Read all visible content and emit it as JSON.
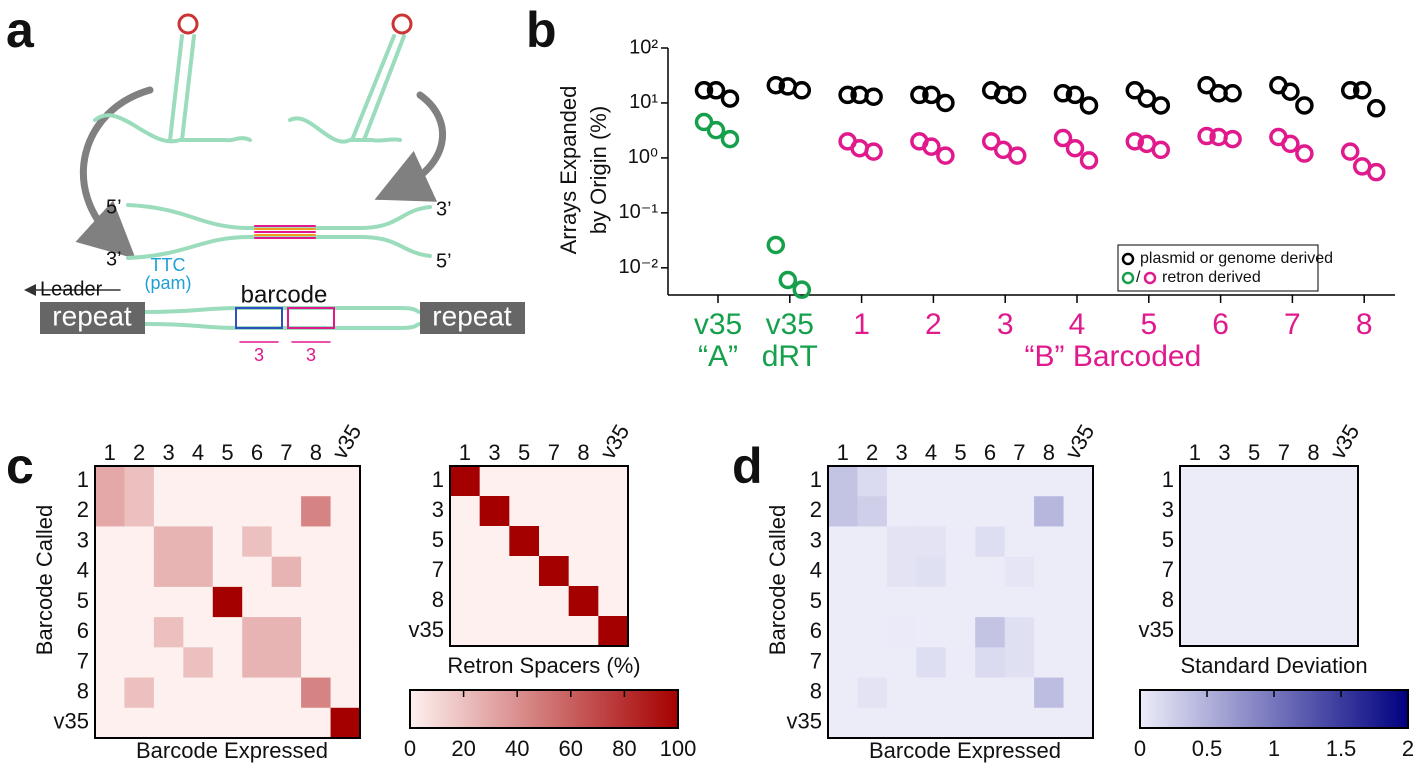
{
  "panel_labels": [
    "a",
    "b",
    "c",
    "d"
  ],
  "diagram": {
    "strand_ends": [
      "5’",
      "3’",
      "3’",
      "5’"
    ],
    "pam": [
      "TTC",
      "(pam)"
    ],
    "leader": "Leader",
    "repeats": [
      "repeat",
      "repeat"
    ],
    "barcode": "barcode",
    "segment_lengths": [
      3,
      3
    ]
  },
  "chart_data": [
    {
      "type": "scatter",
      "log_y": true,
      "ylabel": [
        "Arrays Expanded",
        "by Origin (%)"
      ],
      "categories": [
        "v35",
        "v35",
        "1",
        "2",
        "3",
        "4",
        "5",
        "6",
        "7",
        "8"
      ],
      "category_sublabels": [
        "“A”",
        "dRT",
        null,
        null,
        null,
        null,
        null,
        null,
        null,
        null
      ],
      "group_label": "“B” Barcoded",
      "ylim": [
        0.0032,
        100
      ],
      "yticks": [
        {
          "value": 100,
          "label": "10²"
        },
        {
          "value": 10,
          "label": "10¹"
        },
        {
          "value": 1,
          "label": "10⁰"
        },
        {
          "value": 0.1,
          "label": "10⁻¹"
        },
        {
          "value": 0.01,
          "label": "10⁻²"
        }
      ],
      "legend": "lower right",
      "legend_separator": "/",
      "series": [
        {
          "name": "plasmid or genome derived",
          "color": "#000000",
          "values": [
            [
              17,
              17,
              12
            ],
            [
              21,
              20,
              17
            ],
            [
              14,
              14,
              13
            ],
            [
              14,
              14,
              10
            ],
            [
              17,
              14,
              14
            ],
            [
              15,
              14,
              9
            ],
            [
              17,
              12,
              9
            ],
            [
              21,
              15,
              15
            ],
            [
              21,
              16,
              9
            ],
            [
              17,
              17,
              8
            ]
          ]
        },
        {
          "name": "retron derived",
          "colors": [
            "#16a04c",
            "#16a04c",
            "#e0198c",
            "#e0198c",
            "#e0198c",
            "#e0198c",
            "#e0198c",
            "#e0198c",
            "#e0198c",
            "#e0198c"
          ],
          "values": [
            [
              4.5,
              3.2,
              2.2
            ],
            [
              0.026,
              0.006,
              0.004
            ],
            [
              2.0,
              1.5,
              1.3
            ],
            [
              2.0,
              1.6,
              1.1
            ],
            [
              2.0,
              1.4,
              1.1
            ],
            [
              2.3,
              1.5,
              0.9
            ],
            [
              2.0,
              1.8,
              1.4
            ],
            [
              2.5,
              2.4,
              2.2
            ],
            [
              2.4,
              1.8,
              1.2
            ],
            [
              1.3,
              0.7,
              0.55
            ]
          ]
        }
      ]
    },
    {
      "type": "heatmap",
      "ylabel": "Barcode Called",
      "xlabel": "Barcode Expressed",
      "colorbar_title": "Retron Spacers (%)",
      "clim": [
        0,
        100
      ],
      "cticks": [
        0,
        20,
        40,
        60,
        80,
        100
      ],
      "colors": [
        "#fdf0ef",
        "#a50000"
      ],
      "matrices": [
        {
          "rows": [
            "1",
            "2",
            "3",
            "4",
            "5",
            "6",
            "7",
            "8",
            "v35"
          ],
          "columns": [
            "1",
            "2",
            "3",
            "4",
            "5",
            "6",
            "7",
            "8",
            "v35"
          ],
          "values": [
            [
              30,
              20,
              0,
              0,
              0,
              0,
              0,
              0,
              0
            ],
            [
              30,
              20,
              0,
              0,
              0,
              0,
              0,
              45,
              0
            ],
            [
              0,
              0,
              25,
              25,
              0,
              20,
              0,
              0,
              0
            ],
            [
              0,
              0,
              25,
              25,
              0,
              0,
              25,
              0,
              0
            ],
            [
              0,
              0,
              0,
              0,
              100,
              0,
              0,
              0,
              0
            ],
            [
              0,
              0,
              20,
              0,
              0,
              25,
              25,
              0,
              0
            ],
            [
              0,
              0,
              0,
              20,
              0,
              25,
              25,
              0,
              0
            ],
            [
              0,
              20,
              0,
              0,
              0,
              0,
              0,
              45,
              0
            ],
            [
              0,
              0,
              0,
              0,
              0,
              0,
              0,
              0,
              100
            ]
          ]
        },
        {
          "rows": [
            "1",
            "3",
            "5",
            "7",
            "8",
            "v35"
          ],
          "columns": [
            "1",
            "3",
            "5",
            "7",
            "8",
            "v35"
          ],
          "values": [
            [
              100,
              0,
              0,
              0,
              0,
              0
            ],
            [
              0,
              100,
              0,
              0,
              0,
              0
            ],
            [
              0,
              0,
              100,
              0,
              0,
              0
            ],
            [
              0,
              0,
              0,
              100,
              0,
              0
            ],
            [
              0,
              0,
              0,
              0,
              100,
              0
            ],
            [
              0,
              0,
              0,
              0,
              0,
              100
            ]
          ]
        }
      ]
    },
    {
      "type": "heatmap",
      "ylabel": "Barcode Called",
      "xlabel": "Barcode Expressed",
      "colorbar_title": "Standard Deviation",
      "clim": [
        0,
        2
      ],
      "cticks": [
        0,
        0.5,
        1,
        1.5,
        2
      ],
      "colors": [
        "#ececf9",
        "#000080"
      ],
      "matrices": [
        {
          "rows": [
            "1",
            "2",
            "3",
            "4",
            "5",
            "6",
            "7",
            "8",
            "v35"
          ],
          "columns": [
            "1",
            "2",
            "3",
            "4",
            "5",
            "6",
            "7",
            "8",
            "v35"
          ],
          "values": [
            [
              0.35,
              0.15,
              0,
              0,
              0,
              0,
              0,
              0,
              0
            ],
            [
              0.35,
              0.25,
              0,
              0,
              0,
              0,
              0,
              0.45,
              0
            ],
            [
              0,
              0,
              0.08,
              0.08,
              0,
              0.12,
              0,
              0,
              0
            ],
            [
              0,
              0,
              0.08,
              0.1,
              0,
              0,
              0.06,
              0,
              0
            ],
            [
              0,
              0,
              0,
              0,
              0,
              0,
              0,
              0,
              0
            ],
            [
              0,
              0,
              0.02,
              0,
              0,
              0.35,
              0.1,
              0,
              0
            ],
            [
              0,
              0,
              0,
              0.12,
              0,
              0.15,
              0.1,
              0,
              0
            ],
            [
              0,
              0.08,
              0,
              0,
              0,
              0,
              0,
              0.4,
              0
            ],
            [
              0,
              0,
              0,
              0,
              0,
              0,
              0,
              0,
              0
            ]
          ]
        },
        {
          "rows": [
            "1",
            "3",
            "5",
            "7",
            "8",
            "v35"
          ],
          "columns": [
            "1",
            "3",
            "5",
            "7",
            "8",
            "v35"
          ],
          "values": [
            [
              0,
              0,
              0,
              0,
              0,
              0
            ],
            [
              0,
              0,
              0,
              0,
              0,
              0
            ],
            [
              0,
              0,
              0,
              0,
              0,
              0
            ],
            [
              0,
              0,
              0,
              0,
              0,
              0
            ],
            [
              0,
              0,
              0,
              0,
              0,
              0
            ],
            [
              0,
              0,
              0,
              0,
              0,
              0
            ]
          ]
        }
      ]
    }
  ]
}
